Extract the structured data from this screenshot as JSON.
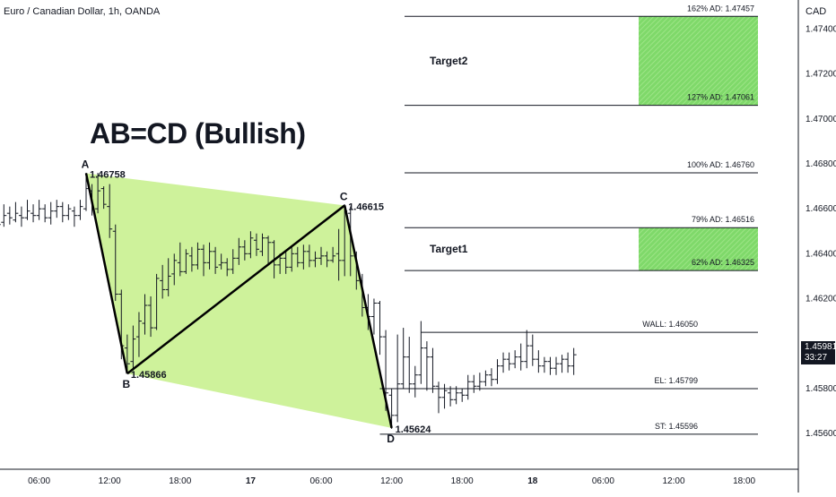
{
  "header": {
    "symbol_title": "Euro / Canadian Dollar, 1h, OANDA",
    "currency": "CAD"
  },
  "pattern_title": "AB=CD (Bullish)",
  "last_price": {
    "price": "1.45981",
    "countdown": "33:27",
    "value": 1.45981
  },
  "colors": {
    "pattern_fill": "#c5f08a",
    "target_fill": "#7fd96a",
    "candle": "#131722",
    "level_line": "#131722"
  },
  "chart_data": {
    "type": "candlestick",
    "ylim": [
      1.4548,
      1.4749
    ],
    "y_ticks": [
      1.474,
      1.472,
      1.47,
      1.468,
      1.466,
      1.464,
      1.462,
      1.458,
      1.456
    ],
    "y_tick_labels": [
      "1.47400",
      "1.47200",
      "1.47000",
      "1.46800",
      "1.46600",
      "1.46400",
      "1.46200",
      "1.45800",
      "1.45600"
    ],
    "x_ticks": [
      {
        "label": "06:00",
        "x": 2
      },
      {
        "label": "12:00",
        "x": 8
      },
      {
        "label": "18:00",
        "x": 14
      },
      {
        "label": "17",
        "x": 20,
        "bold": true
      },
      {
        "label": "06:00",
        "x": 26
      },
      {
        "label": "12:00",
        "x": 32
      },
      {
        "label": "18:00",
        "x": 38
      },
      {
        "label": "18",
        "x": 44,
        "bold": true
      },
      {
        "label": "06:00",
        "x": 50
      },
      {
        "label": "12:00",
        "x": 56
      },
      {
        "label": "18:00",
        "x": 62
      }
    ],
    "candles": [
      [
        -1.5,
        1.4661,
        1.4653,
        1.4664,
        1.4649
      ],
      [
        -1.0,
        1.4654,
        1.4657,
        1.4662,
        1.4652
      ],
      [
        -0.5,
        1.4658,
        1.4656,
        1.4661,
        1.4653
      ],
      [
        0.0,
        1.4655,
        1.4658,
        1.4663,
        1.4654
      ],
      [
        0.5,
        1.4657,
        1.4656,
        1.4661,
        1.4652
      ],
      [
        1.0,
        1.4656,
        1.4659,
        1.4664,
        1.4655
      ],
      [
        1.5,
        1.4658,
        1.4657,
        1.4662,
        1.4654
      ],
      [
        2.0,
        1.4657,
        1.466,
        1.4664,
        1.4655
      ],
      [
        2.5,
        1.466,
        1.4656,
        1.4662,
        1.4654
      ],
      [
        3.0,
        1.4656,
        1.4659,
        1.4663,
        1.4653
      ],
      [
        3.5,
        1.4659,
        1.4661,
        1.4664,
        1.4656
      ],
      [
        4.0,
        1.4661,
        1.4657,
        1.4663,
        1.4654
      ],
      [
        4.5,
        1.4657,
        1.466,
        1.4662,
        1.4655
      ],
      [
        5.0,
        1.4659,
        1.4657,
        1.4661,
        1.4652
      ],
      [
        5.5,
        1.4657,
        1.4661,
        1.4664,
        1.4655
      ],
      [
        6.0,
        1.466,
        1.4669,
        1.4676,
        1.4659
      ],
      [
        6.5,
        1.4668,
        1.466,
        1.4671,
        1.4657
      ],
      [
        7.0,
        1.466,
        1.4668,
        1.4676,
        1.4658
      ],
      [
        7.5,
        1.4669,
        1.4662,
        1.467,
        1.466
      ],
      [
        8.0,
        1.4661,
        1.4651,
        1.4671,
        1.4647
      ],
      [
        8.5,
        1.465,
        1.4622,
        1.4653,
        1.4619
      ],
      [
        9.0,
        1.4622,
        1.4599,
        1.4624,
        1.4593
      ],
      [
        9.5,
        1.4598,
        1.4591,
        1.4604,
        1.4587
      ],
      [
        10.0,
        1.4592,
        1.4602,
        1.4608,
        1.4588
      ],
      [
        10.5,
        1.4603,
        1.461,
        1.4614,
        1.4594
      ],
      [
        11.0,
        1.4609,
        1.4617,
        1.4622,
        1.4604
      ],
      [
        11.5,
        1.4617,
        1.4607,
        1.4621,
        1.4603
      ],
      [
        12.0,
        1.4607,
        1.4629,
        1.4631,
        1.4606
      ],
      [
        12.5,
        1.4628,
        1.4624,
        1.4635,
        1.462
      ],
      [
        13.0,
        1.4624,
        1.463,
        1.4638,
        1.4621
      ],
      [
        13.5,
        1.4631,
        1.4637,
        1.464,
        1.4626
      ],
      [
        14.0,
        1.4636,
        1.4632,
        1.4645,
        1.463
      ],
      [
        14.5,
        1.4632,
        1.464,
        1.4642,
        1.4631
      ],
      [
        15.0,
        1.4639,
        1.4635,
        1.4643,
        1.4632
      ],
      [
        15.5,
        1.4635,
        1.4642,
        1.4645,
        1.4633
      ],
      [
        16.0,
        1.4642,
        1.4636,
        1.4644,
        1.463
      ],
      [
        16.5,
        1.4636,
        1.4641,
        1.4645,
        1.4633
      ],
      [
        17.0,
        1.4641,
        1.4634,
        1.4643,
        1.4631
      ],
      [
        17.5,
        1.4635,
        1.4636,
        1.464,
        1.4633
      ],
      [
        18.0,
        1.4636,
        1.4633,
        1.4638,
        1.463
      ],
      [
        18.5,
        1.4633,
        1.4638,
        1.4642,
        1.4631
      ],
      [
        19.0,
        1.4638,
        1.4643,
        1.4647,
        1.4635
      ],
      [
        19.5,
        1.4643,
        1.464,
        1.4646,
        1.4637
      ],
      [
        20.0,
        1.464,
        1.4647,
        1.465,
        1.4638
      ],
      [
        20.5,
        1.4646,
        1.4642,
        1.4649,
        1.4639
      ],
      [
        21.0,
        1.4641,
        1.4647,
        1.4649,
        1.4639
      ],
      [
        21.5,
        1.4647,
        1.4645,
        1.4648,
        1.4635
      ],
      [
        22.0,
        1.4645,
        1.4635,
        1.4646,
        1.4629
      ],
      [
        22.5,
        1.4635,
        1.4638,
        1.464,
        1.4631
      ],
      [
        23.0,
        1.4638,
        1.4634,
        1.4641,
        1.4631
      ],
      [
        23.5,
        1.4634,
        1.464,
        1.4643,
        1.4632
      ],
      [
        24.0,
        1.464,
        1.4636,
        1.4643,
        1.4634
      ],
      [
        24.5,
        1.4636,
        1.4641,
        1.4644,
        1.4633
      ],
      [
        25.0,
        1.4641,
        1.4637,
        1.4644,
        1.4634
      ],
      [
        25.5,
        1.4637,
        1.4638,
        1.4641,
        1.4634
      ],
      [
        26.0,
        1.4638,
        1.4639,
        1.4643,
        1.4635
      ],
      [
        26.5,
        1.4639,
        1.4637,
        1.4641,
        1.4634
      ],
      [
        27.0,
        1.4637,
        1.4639,
        1.4643,
        1.4636
      ],
      [
        27.5,
        1.464,
        1.4637,
        1.4651,
        1.4628
      ],
      [
        28.0,
        1.4637,
        1.4659,
        1.4662,
        1.463
      ],
      [
        28.5,
        1.4658,
        1.4639,
        1.4661,
        1.463
      ],
      [
        29.0,
        1.4639,
        1.4628,
        1.4641,
        1.4624
      ],
      [
        29.5,
        1.4628,
        1.4616,
        1.4631,
        1.4612
      ],
      [
        30.0,
        1.4616,
        1.4612,
        1.4622,
        1.4606
      ],
      [
        30.5,
        1.4612,
        1.4618,
        1.462,
        1.4604
      ],
      [
        31.0,
        1.4618,
        1.4603,
        1.4619,
        1.4595
      ],
      [
        31.5,
        1.4603,
        1.4578,
        1.4606,
        1.457
      ],
      [
        32.0,
        1.4577,
        1.4568,
        1.458,
        1.4562
      ],
      [
        32.5,
        1.4568,
        1.4582,
        1.4604,
        1.4565
      ],
      [
        33.0,
        1.4582,
        1.4594,
        1.4607,
        1.458
      ],
      [
        33.5,
        1.4594,
        1.4582,
        1.4603,
        1.4578
      ],
      [
        34.0,
        1.4582,
        1.4586,
        1.459,
        1.4576
      ],
      [
        34.5,
        1.4586,
        1.4598,
        1.461,
        1.4582
      ],
      [
        35.0,
        1.4598,
        1.4594,
        1.4601,
        1.4579
      ],
      [
        35.5,
        1.4594,
        1.4581,
        1.4598,
        1.4578
      ],
      [
        36.0,
        1.4581,
        1.4576,
        1.4583,
        1.4569
      ],
      [
        36.5,
        1.4576,
        1.4579,
        1.4582,
        1.4571
      ],
      [
        37.0,
        1.4578,
        1.4575,
        1.4581,
        1.4572
      ],
      [
        37.5,
        1.4575,
        1.4578,
        1.4581,
        1.4573
      ],
      [
        38.0,
        1.4578,
        1.4577,
        1.458,
        1.4574
      ],
      [
        38.5,
        1.4577,
        1.4583,
        1.4586,
        1.4575
      ],
      [
        39.0,
        1.4583,
        1.4581,
        1.4586,
        1.4578
      ],
      [
        39.5,
        1.4581,
        1.4583,
        1.4587,
        1.4579
      ],
      [
        40.0,
        1.4583,
        1.4586,
        1.4588,
        1.4581
      ],
      [
        40.5,
        1.4586,
        1.4584,
        1.4589,
        1.4581
      ],
      [
        41.0,
        1.4584,
        1.459,
        1.4593,
        1.4582
      ],
      [
        41.5,
        1.459,
        1.4593,
        1.4596,
        1.4587
      ],
      [
        42.0,
        1.4593,
        1.4591,
        1.4596,
        1.4588
      ],
      [
        42.5,
        1.4591,
        1.4594,
        1.4597,
        1.4589
      ],
      [
        43.0,
        1.4594,
        1.4592,
        1.46,
        1.4588
      ],
      [
        43.5,
        1.4592,
        1.4599,
        1.4606,
        1.4589
      ],
      [
        44.0,
        1.4599,
        1.4593,
        1.4604,
        1.459
      ],
      [
        44.5,
        1.4593,
        1.459,
        1.4597,
        1.4587
      ],
      [
        45.0,
        1.459,
        1.4592,
        1.4594,
        1.4587
      ],
      [
        45.5,
        1.4592,
        1.4589,
        1.4594,
        1.4586
      ],
      [
        46.0,
        1.4589,
        1.4591,
        1.4594,
        1.4586
      ],
      [
        46.5,
        1.4591,
        1.4593,
        1.4595,
        1.4587
      ],
      [
        47.0,
        1.4593,
        1.459,
        1.4596,
        1.4587
      ],
      [
        47.5,
        1.459,
        1.4595,
        1.4598,
        1.4586
      ]
    ],
    "pattern": {
      "points": [
        {
          "label": "A",
          "x": 6.0,
          "y": 1.46758,
          "value_label": "1.46758",
          "letter_pos": "above"
        },
        {
          "label": "B",
          "x": 9.5,
          "y": 1.45866,
          "value_label": "1.45866",
          "letter_pos": "below"
        },
        {
          "label": "C",
          "x": 28.0,
          "y": 1.46615,
          "value_label": "1.46615",
          "letter_pos": "above"
        },
        {
          "label": "D",
          "x": 32.0,
          "y": 1.45624,
          "value_label": "1.45624",
          "letter_pos": "below"
        }
      ]
    },
    "target_levels": [
      {
        "label": "162% AD: 1.47457",
        "value": 1.47457
      },
      {
        "label": "127% AD: 1.47061",
        "value": 1.47061
      },
      {
        "label": "100% AD: 1.46760",
        "value": 1.4676
      },
      {
        "label": "79% AD: 1.46516",
        "value": 1.46516
      },
      {
        "label": "62% AD: 1.46325",
        "value": 1.46325
      }
    ],
    "target_zones": [
      {
        "label": "Target2",
        "top": 1.47457,
        "bottom": 1.47061
      },
      {
        "label": "Target1",
        "top": 1.46516,
        "bottom": 1.46325
      }
    ],
    "trade_levels": [
      {
        "label": "WALL: 1.46050",
        "value": 1.4605,
        "x_start": 34.5
      },
      {
        "label": "EL: 1.45799",
        "value": 1.45799,
        "x_start": 31.0
      },
      {
        "label": "ST: 1.45596",
        "value": 1.45596,
        "x_start": 31.0
      }
    ]
  }
}
